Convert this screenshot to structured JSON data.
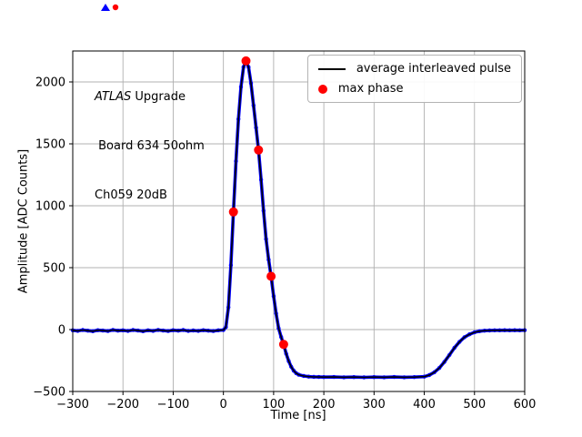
{
  "annotation": {
    "line1_italic": "ATLAS",
    "line1_rest": " Upgrade",
    "line2": " Board 634 50ohm",
    "line3": "Ch059 20dB"
  },
  "chart_data": {
    "type": "line",
    "title": "",
    "xlabel": "Time [ns]",
    "ylabel": "Amplitude [ADC Counts]",
    "xlim": [
      -300,
      600
    ],
    "ylim": [
      -500,
      2250
    ],
    "xticks": [
      -300,
      -200,
      -100,
      0,
      100,
      200,
      300,
      400,
      500,
      600
    ],
    "yticks": [
      -500,
      0,
      500,
      1000,
      1500,
      2000
    ],
    "grid": true,
    "legend_position": "upper right",
    "colors": {
      "pulse_marker": "#0000ff",
      "pulse_line": "#000000",
      "max_phase": "#ff0000",
      "grid": "#b0b0b0"
    },
    "series": [
      {
        "name": "average interleaved pulse",
        "style": "black line over dense blue dot markers",
        "x": [
          -300,
          -290,
          -280,
          -270,
          -260,
          -250,
          -240,
          -230,
          -220,
          -210,
          -200,
          -190,
          -180,
          -170,
          -160,
          -150,
          -140,
          -130,
          -120,
          -110,
          -100,
          -90,
          -80,
          -70,
          -60,
          -50,
          -40,
          -30,
          -20,
          -10,
          0,
          5,
          10,
          15,
          20,
          25,
          30,
          35,
          40,
          45,
          50,
          55,
          60,
          65,
          70,
          75,
          80,
          85,
          90,
          95,
          100,
          105,
          110,
          115,
          120,
          125,
          130,
          135,
          140,
          145,
          150,
          160,
          170,
          180,
          190,
          200,
          220,
          240,
          260,
          280,
          300,
          320,
          340,
          360,
          380,
          400,
          410,
          420,
          430,
          440,
          450,
          460,
          470,
          480,
          490,
          500,
          510,
          520,
          530,
          540,
          550,
          560,
          570,
          580,
          590,
          600
        ],
        "y": [
          -6,
          -10,
          -4,
          -9,
          -13,
          -5,
          -8,
          -12,
          -3,
          -9,
          -6,
          -11,
          -4,
          -8,
          -13,
          -6,
          -10,
          -3,
          -8,
          -12,
          -5,
          -9,
          -4,
          -11,
          -7,
          -10,
          -5,
          -9,
          -12,
          -6,
          -4,
          20,
          180,
          520,
          950,
          1360,
          1700,
          1960,
          2120,
          2170,
          2120,
          1990,
          1810,
          1630,
          1450,
          1210,
          960,
          730,
          565,
          430,
          270,
          130,
          10,
          -60,
          -120,
          -195,
          -255,
          -300,
          -332,
          -352,
          -365,
          -375,
          -380,
          -382,
          -383,
          -384,
          -383,
          -385,
          -384,
          -386,
          -384,
          -385,
          -383,
          -385,
          -384,
          -380,
          -368,
          -345,
          -310,
          -262,
          -205,
          -148,
          -100,
          -62,
          -38,
          -22,
          -13,
          -9,
          -7,
          -6,
          -6,
          -5,
          -6,
          -5,
          -6,
          -5
        ]
      },
      {
        "name": "max phase",
        "style": "red dot markers",
        "x": [
          20,
          45,
          70,
          95,
          120
        ],
        "y": [
          950,
          2170,
          1450,
          430,
          -120
        ]
      }
    ],
    "annotation_text": [
      "ATLAS Upgrade",
      " Board 634 50ohm",
      "Ch059 20dB"
    ]
  }
}
